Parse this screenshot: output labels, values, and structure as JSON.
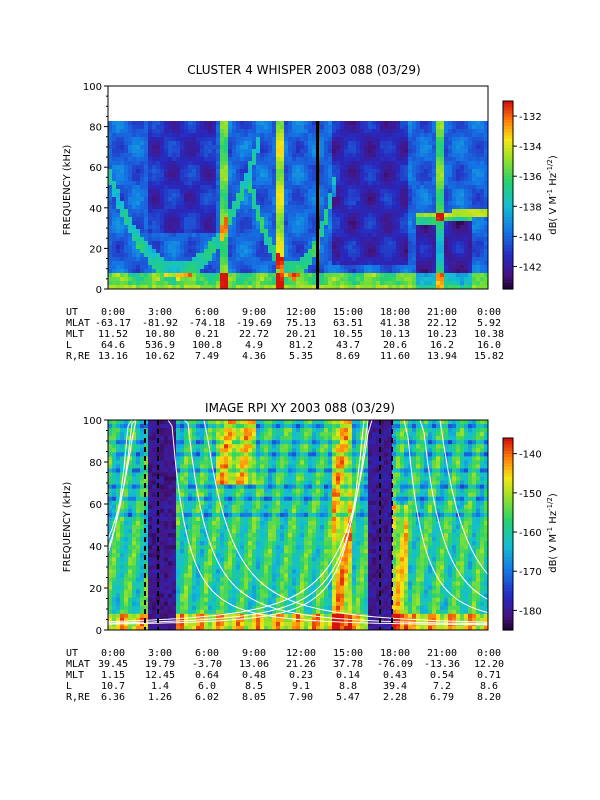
{
  "chart_data": [
    {
      "type": "heatmap",
      "title": "CLUSTER 4 WHISPER 2003 088 (03/29)",
      "ylabel": "FREQUENCY (kHz)",
      "ylim": [
        0,
        100
      ],
      "yticks": [
        "0",
        "20",
        "40",
        "60",
        "80",
        "100"
      ],
      "data_ylim": [
        0,
        80
      ],
      "colorbar": {
        "label": "dB( V M^-1 Hz^-1/2)",
        "range": [
          -143.5,
          -131
        ],
        "ticks": [
          "-132",
          "-134",
          "-136",
          "-138",
          "-140",
          "-142"
        ],
        "tick_values": [
          -132,
          -134,
          -136,
          -138,
          -140,
          -142
        ]
      },
      "ephemeris": {
        "row_labels": [
          "UT",
          "MLAT",
          "MLT",
          "L",
          "R,RE"
        ],
        "columns": [
          [
            "0:00",
            "-63.17",
            "11.52",
            "64.6",
            "13.16"
          ],
          [
            "3:00",
            "-81.92",
            "10.80",
            "536.9",
            "10.62"
          ],
          [
            "6:00",
            "-74.18",
            "0.21",
            "100.8",
            "7.49"
          ],
          [
            "9:00",
            "-19.69",
            "22.72",
            "4.9",
            "4.36"
          ],
          [
            "12:00",
            "75.13",
            "20.21",
            "81.2",
            "5.35"
          ],
          [
            "15:00",
            "63.51",
            "10.55",
            "43.7",
            "8.69"
          ],
          [
            "18:00",
            "41.38",
            "10.13",
            "20.6",
            "11.60"
          ],
          [
            "21:00",
            "22.12",
            "10.23",
            "16.2",
            "13.94"
          ],
          [
            "0:00",
            "5.92",
            "10.38",
            "16.0",
            "15.82"
          ]
        ]
      }
    },
    {
      "type": "heatmap",
      "title": "IMAGE RPI XY 2003 088 (03/29)",
      "ylabel": "FREQUENCY (kHz)",
      "ylim": [
        0,
        100
      ],
      "yticks": [
        "0",
        "20",
        "40",
        "60",
        "80",
        "100"
      ],
      "colorbar": {
        "label": "dB( V M^-1 Hz^-1/2)",
        "range": [
          -185,
          -136
        ],
        "ticks": [
          "-140",
          "-150",
          "-160",
          "-170",
          "-180"
        ],
        "tick_values": [
          -140,
          -150,
          -160,
          -170,
          -180
        ]
      },
      "ephemeris": {
        "row_labels": [
          "UT",
          "MLAT",
          "MLT",
          "L",
          "R,RE"
        ],
        "columns": [
          [
            "0:00",
            "39.45",
            "1.15",
            "10.7",
            "6.36"
          ],
          [
            "3:00",
            "19.79",
            "12.45",
            "1.4",
            "1.26"
          ],
          [
            "6:00",
            "-3.70",
            "0.64",
            "6.0",
            "6.02"
          ],
          [
            "9:00",
            "13.06",
            "0.48",
            "8.5",
            "8.05"
          ],
          [
            "12:00",
            "21.26",
            "0.23",
            "9.1",
            "7.90"
          ],
          [
            "15:00",
            "37.78",
            "0.14",
            "8.8",
            "5.47"
          ],
          [
            "18:00",
            "-76.09",
            "0.43",
            "39.4",
            "2.28"
          ],
          [
            "21:00",
            "-13.36",
            "0.54",
            "7.2",
            "6.79"
          ],
          [
            "0:00",
            "12.20",
            "0.71",
            "8.6",
            "8.20"
          ]
        ]
      }
    }
  ]
}
